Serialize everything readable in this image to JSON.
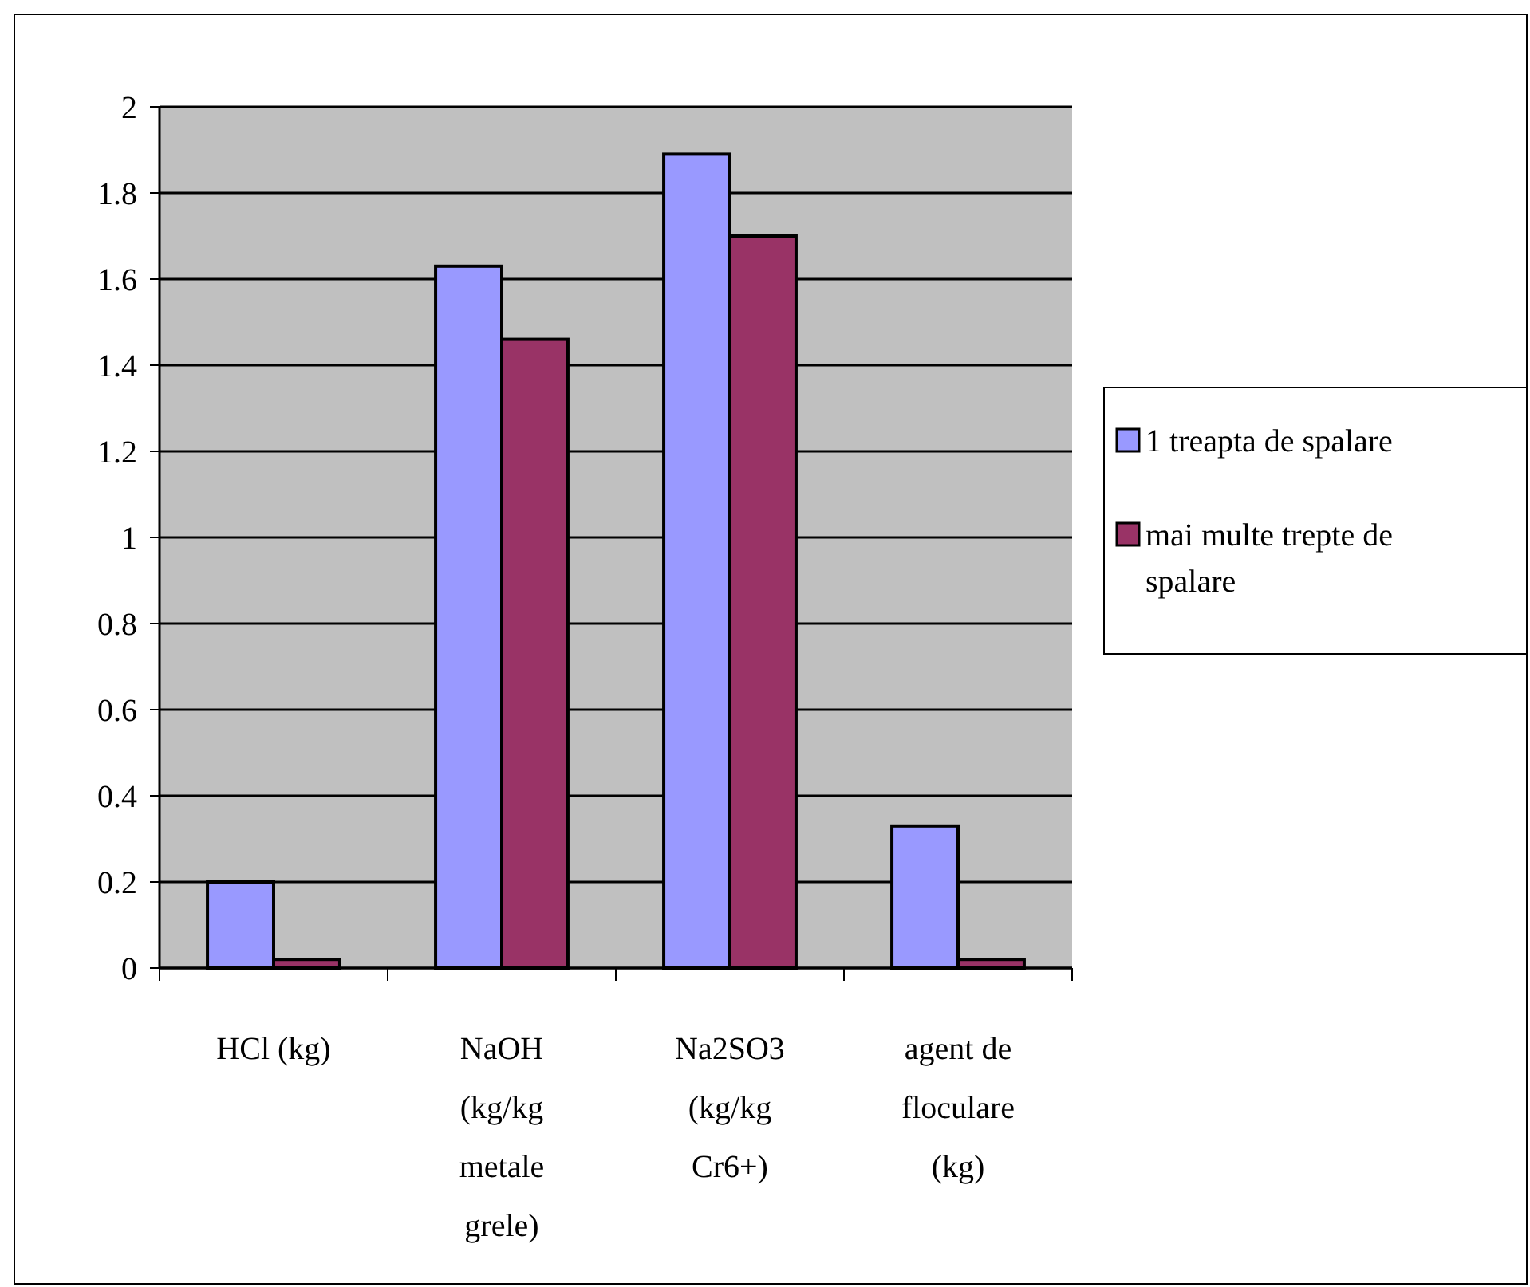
{
  "chart_data": {
    "type": "bar",
    "categories": [
      "HCl (kg)",
      "NaOH (kg/kg metale grele)",
      "Na2SO3 (kg/kg Cr6+)",
      "agent de floculare (kg)"
    ],
    "series": [
      {
        "name": "1 treapta de spalare",
        "color": "#9999ff",
        "values": [
          0.2,
          1.63,
          1.89,
          0.33
        ]
      },
      {
        "name": "mai multe trepte de spalare",
        "color": "#993366",
        "values": [
          0.02,
          1.46,
          1.7,
          0.02
        ]
      }
    ],
    "ylim": [
      0,
      2
    ],
    "yticks": [
      0,
      0.2,
      0.4,
      0.6,
      0.8,
      1,
      1.2,
      1.4,
      1.6,
      1.8,
      2
    ],
    "grid": "y",
    "legend": "right"
  }
}
